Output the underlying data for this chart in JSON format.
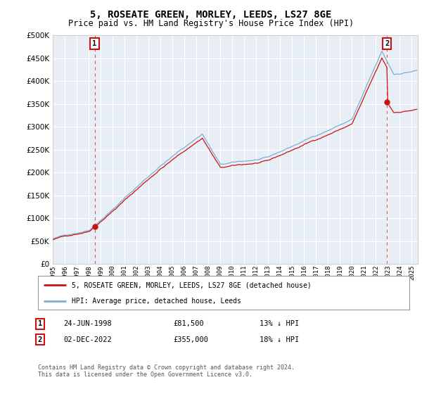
{
  "title": "5, ROSEATE GREEN, MORLEY, LEEDS, LS27 8GE",
  "subtitle": "Price paid vs. HM Land Registry's House Price Index (HPI)",
  "title_fontsize": 10,
  "subtitle_fontsize": 8.5,
  "background_color": "#ffffff",
  "plot_bg_color": "#e8eef5",
  "grid_color": "#ffffff",
  "hpi_color": "#7dadd4",
  "price_color": "#cc1111",
  "ylim": [
    0,
    500000
  ],
  "yticks": [
    0,
    50000,
    100000,
    150000,
    200000,
    250000,
    300000,
    350000,
    400000,
    450000,
    500000
  ],
  "sale1_year": 1998.5,
  "sale1_price": 81500,
  "sale2_year": 2022.92,
  "sale2_price": 355000,
  "sale1_hpi_discount": 0.87,
  "sale2_hpi_discount": 0.82,
  "legend_entry1": "5, ROSEATE GREEN, MORLEY, LEEDS, LS27 8GE (detached house)",
  "legend_entry2": "HPI: Average price, detached house, Leeds",
  "table_row1": [
    "1",
    "24-JUN-1998",
    "£81,500",
    "13% ↓ HPI"
  ],
  "table_row2": [
    "2",
    "02-DEC-2022",
    "£355,000",
    "18% ↓ HPI"
  ],
  "footnote": "Contains HM Land Registry data © Crown copyright and database right 2024.\nThis data is licensed under the Open Government Licence v3.0.",
  "xmin": 1995,
  "xmax": 2025.5,
  "xticks": [
    1995,
    1996,
    1997,
    1998,
    1999,
    2000,
    2001,
    2002,
    2003,
    2004,
    2005,
    2006,
    2007,
    2008,
    2009,
    2010,
    2011,
    2012,
    2013,
    2014,
    2015,
    2016,
    2017,
    2018,
    2019,
    2020,
    2021,
    2022,
    2023,
    2024,
    2025
  ]
}
